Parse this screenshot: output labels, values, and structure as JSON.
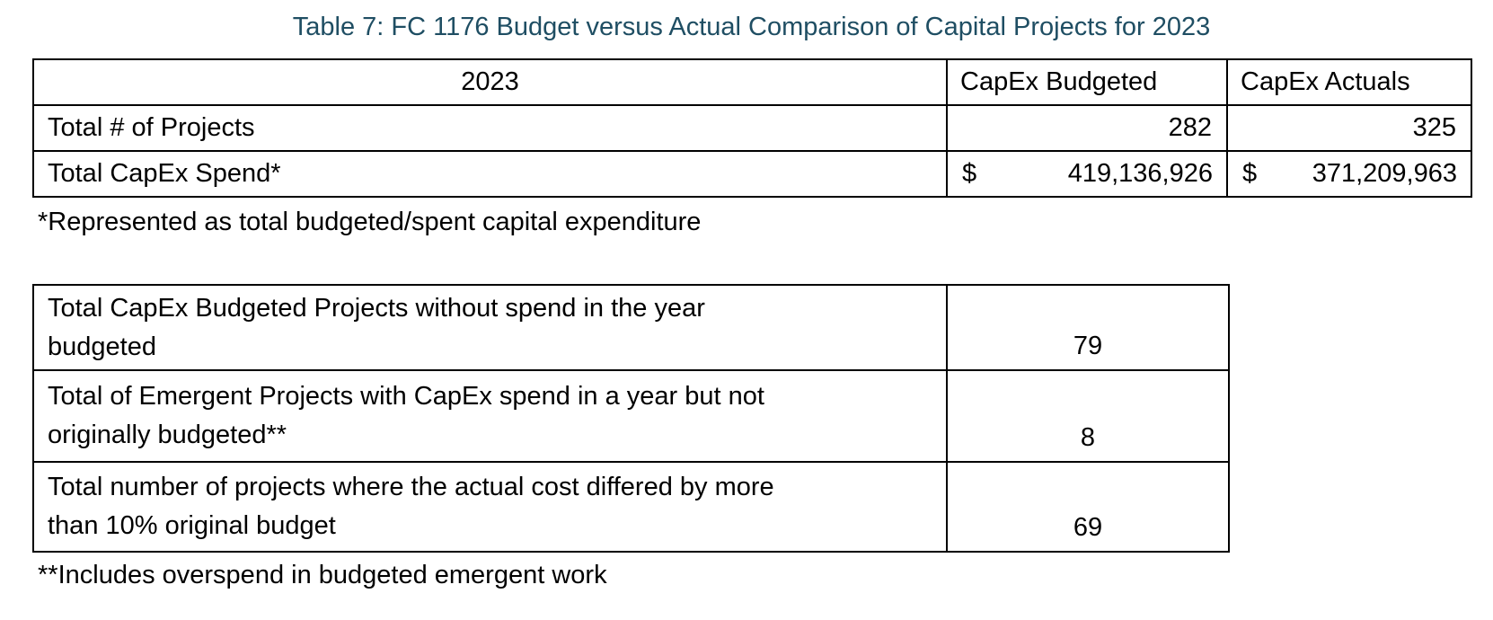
{
  "caption": "Table 7: FC 1176 Budget versus Actual Comparison of Capital Projects for 2023",
  "colors": {
    "caption_text": "#1F4E63",
    "body_text": "#000000",
    "table_border": "#000000",
    "background": "#FFFFFF"
  },
  "table1": {
    "header": {
      "year": "2023",
      "budgeted": "CapEx Budgeted",
      "actuals": "CapEx Actuals"
    },
    "rows": [
      {
        "label": "Total # of Projects",
        "budgeted": "282",
        "actuals": "325"
      },
      {
        "label": "Total CapEx Spend*",
        "currency": "$",
        "budgeted": "419,136,926",
        "actuals": "371,209,963"
      }
    ],
    "footnote": "*Represented as total budgeted/spent capital expenditure"
  },
  "table2": {
    "rows": [
      {
        "label": "Total CapEx Budgeted Projects without spend in the year budgeted",
        "lines": [
          "Total CapEx Budgeted Projects without spend in the year",
          "budgeted"
        ],
        "value": "79"
      },
      {
        "label": "Total of Emergent Projects with CapEx spend in a year but not originally budgeted**",
        "lines": [
          "Total of Emergent Projects with CapEx spend in a year but not",
          "originally budgeted**"
        ],
        "value": "8"
      },
      {
        "label": "Total number of projects where the actual cost differed by more than 10% original budget",
        "lines": [
          "Total number of projects where the actual cost differed by more",
          "than 10% original budget"
        ],
        "value": "69"
      }
    ],
    "footnote": "**Includes overspend in budgeted emergent work"
  }
}
